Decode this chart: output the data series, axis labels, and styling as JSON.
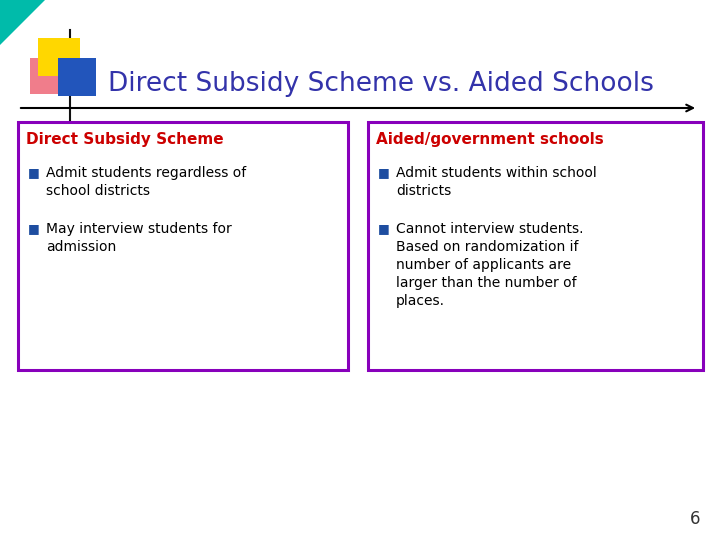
{
  "title": "Direct Subsidy Scheme vs. Aided Schools",
  "title_color": "#3333AA",
  "title_fontsize": 19,
  "background_color": "#FFFFFF",
  "slide_number": "6",
  "left_box": {
    "heading": "Direct Subsidy Scheme",
    "heading_color": "#CC0000",
    "border_color": "#8800BB",
    "bullet_color": "#1E4DA0",
    "bullet_char": "■",
    "items": [
      [
        "Admit students regardless of",
        "school districts"
      ],
      [
        "May interview students for",
        "admission"
      ]
    ],
    "text_color": "#000000"
  },
  "right_box": {
    "heading": "Aided/government schools",
    "heading_color": "#CC0000",
    "border_color": "#8800BB",
    "bullet_color": "#1E4DA0",
    "bullet_char": "■",
    "items": [
      [
        "Admit students within school",
        "districts"
      ],
      [
        "Cannot interview students.",
        "Based on randomization if",
        "number of applicants are",
        "larger than the number of",
        "places."
      ]
    ],
    "text_color": "#000000"
  },
  "deco": {
    "teal": "#00BBAA",
    "yellow": "#FFD700",
    "blue": "#2255BB",
    "pink": "#EE6677"
  }
}
